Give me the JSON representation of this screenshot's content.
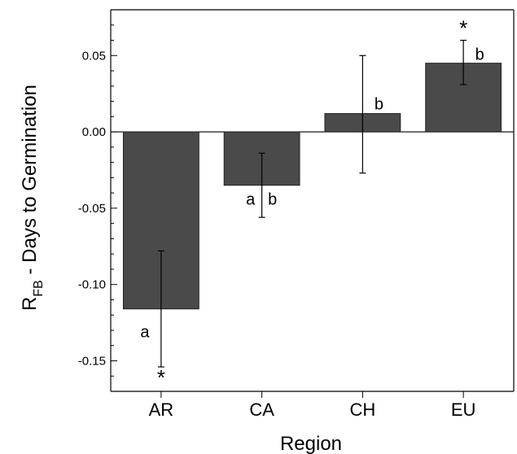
{
  "chart_data": {
    "type": "bar",
    "categories": [
      "AR",
      "CA",
      "CH",
      "EU"
    ],
    "values": [
      -0.116,
      -0.035,
      0.012,
      0.045
    ],
    "error_low": [
      -0.154,
      -0.056,
      -0.027,
      0.031
    ],
    "error_high": [
      -0.078,
      -0.014,
      0.05,
      0.06
    ],
    "significance_letters": [
      "a",
      "a b",
      "b",
      "b"
    ],
    "significance_stars": [
      "*",
      "",
      "",
      "*"
    ],
    "xlabel": "Region",
    "ylabel_main": "R",
    "ylabel_subscript": "FB",
    "ylabel_rest": " - Days to Germination",
    "ylim": [
      -0.17,
      0.08
    ],
    "yticks": [
      0.05,
      0.0,
      -0.05,
      -0.1,
      -0.15
    ],
    "ytick_labels": [
      "0.05",
      "0.00",
      "-0.05",
      "-0.10",
      "-0.15"
    ],
    "bar_color": "#4a4a4a",
    "grid": false
  }
}
